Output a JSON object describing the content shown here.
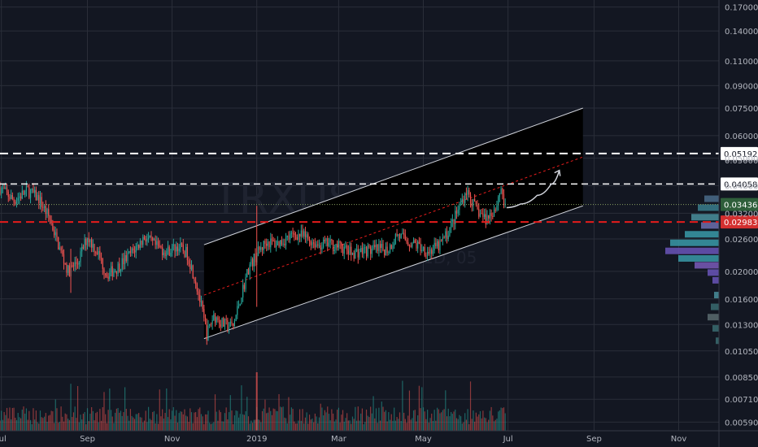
{
  "chart_data": {
    "type": "candlestick",
    "symbol_watermark": "TRXUSD",
    "interval_watermark": "1D, 05",
    "y_scale": "log",
    "ylim": [
      0.0055,
      0.18
    ],
    "x_range": [
      "2018-06-30",
      "2019-11-30"
    ],
    "grid": true,
    "y_ticks": [
      "0.17000",
      "0.14000",
      "0.11000",
      "0.09000",
      "0.07500",
      "0.06000",
      "0.05000",
      "0.04000",
      "0.03200",
      "0.02600",
      "0.02000",
      "0.01600",
      "0.01300",
      "0.01050",
      "0.00850",
      "0.00710",
      "0.00590"
    ],
    "x_ticks": [
      {
        "label": "Jul",
        "date": "2018-07-01"
      },
      {
        "label": "Sep",
        "date": "2018-09-01"
      },
      {
        "label": "Nov",
        "date": "2018-11-01"
      },
      {
        "label": "2019",
        "date": "2019-01-01"
      },
      {
        "label": "Mar",
        "date": "2019-03-01"
      },
      {
        "label": "May",
        "date": "2019-05-01"
      },
      {
        "label": "Jul",
        "date": "2019-07-01"
      },
      {
        "label": "Sep",
        "date": "2019-09-01"
      },
      {
        "label": "Nov",
        "date": "2019-11-01"
      }
    ],
    "price_path": [
      [
        "2018-06-30",
        0.0395
      ],
      [
        "2018-07-10",
        0.0355
      ],
      [
        "2018-07-20",
        0.0385
      ],
      [
        "2018-07-28",
        0.036
      ],
      [
        "2018-08-05",
        0.0305
      ],
      [
        "2018-08-12",
        0.024
      ],
      [
        "2018-08-18",
        0.02
      ],
      [
        "2018-08-25",
        0.0215
      ],
      [
        "2018-09-01",
        0.0265
      ],
      [
        "2018-09-08",
        0.0235
      ],
      [
        "2018-09-15",
        0.0195
      ],
      [
        "2018-09-22",
        0.0205
      ],
      [
        "2018-09-30",
        0.0225
      ],
      [
        "2018-10-07",
        0.0245
      ],
      [
        "2018-10-12",
        0.0265
      ],
      [
        "2018-10-20",
        0.0245
      ],
      [
        "2018-10-28",
        0.0235
      ],
      [
        "2018-11-05",
        0.0245
      ],
      [
        "2018-11-12",
        0.023
      ],
      [
        "2018-11-18",
        0.0185
      ],
      [
        "2018-11-22",
        0.015
      ],
      [
        "2018-11-26",
        0.012
      ],
      [
        "2018-12-01",
        0.014
      ],
      [
        "2018-12-08",
        0.013
      ],
      [
        "2018-12-15",
        0.0128
      ],
      [
        "2018-12-20",
        0.016
      ],
      [
        "2018-12-26",
        0.0205
      ],
      [
        "2019-01-01",
        0.023
      ],
      [
        "2019-01-08",
        0.0255
      ],
      [
        "2019-01-15",
        0.025
      ],
      [
        "2019-01-22",
        0.026
      ],
      [
        "2019-01-30",
        0.027
      ],
      [
        "2019-02-06",
        0.0262
      ],
      [
        "2019-02-14",
        0.0248
      ],
      [
        "2019-02-22",
        0.025
      ],
      [
        "2019-03-01",
        0.0245
      ],
      [
        "2019-03-10",
        0.0232
      ],
      [
        "2019-03-20",
        0.0237
      ],
      [
        "2019-03-30",
        0.0238
      ],
      [
        "2019-04-06",
        0.024
      ],
      [
        "2019-04-12",
        0.027
      ],
      [
        "2019-04-20",
        0.0255
      ],
      [
        "2019-04-28",
        0.0245
      ],
      [
        "2019-05-05",
        0.0235
      ],
      [
        "2019-05-12",
        0.0245
      ],
      [
        "2019-05-18",
        0.027
      ],
      [
        "2019-05-25",
        0.032
      ],
      [
        "2019-06-01",
        0.0385
      ],
      [
        "2019-06-08",
        0.033
      ],
      [
        "2019-06-15",
        0.0305
      ],
      [
        "2019-06-22",
        0.0335
      ],
      [
        "2019-06-26",
        0.0395
      ],
      [
        "2019-06-29",
        0.033
      ]
    ],
    "volume_profile": [
      {
        "price": 0.036,
        "width": 18,
        "color": "#4a6b8a"
      },
      {
        "price": 0.0335,
        "width": 26,
        "color": "#3a7d8c"
      },
      {
        "price": 0.031,
        "width": 34,
        "color": "#4a8f9c"
      },
      {
        "price": 0.029,
        "width": 22,
        "color": "#6c6fae"
      },
      {
        "price": 0.027,
        "width": 42,
        "color": "#3a9aa8"
      },
      {
        "price": 0.0252,
        "width": 60,
        "color": "#3a9aa8"
      },
      {
        "price": 0.0236,
        "width": 66,
        "color": "#6a55b8"
      },
      {
        "price": 0.0222,
        "width": 50,
        "color": "#3a9aa8"
      },
      {
        "price": 0.021,
        "width": 30,
        "color": "#7a5ab8"
      },
      {
        "price": 0.0198,
        "width": 14,
        "color": "#6a55b8"
      },
      {
        "price": 0.0186,
        "width": 8,
        "color": "#6a55b8"
      },
      {
        "price": 0.0165,
        "width": 6,
        "color": "#4a8f9c"
      },
      {
        "price": 0.015,
        "width": 10,
        "color": "#3a6b70"
      },
      {
        "price": 0.0138,
        "width": 14,
        "color": "#5a6b6e"
      },
      {
        "price": 0.0126,
        "width": 8,
        "color": "#3a6b70"
      },
      {
        "price": 0.0114,
        "width": 4,
        "color": "#3a6b70"
      }
    ],
    "colors": {
      "background": "#131722",
      "grid": "#2a2e39",
      "up": "#26a69a",
      "down": "#ef5350",
      "channel_fill": "#000000",
      "channel_line": "#d1d4dc",
      "white_dash": "#ffffff",
      "red_dash": "#e51c1c",
      "current_dotted": "#88a060",
      "label_dark": "#1e222d",
      "label_current": "#2e5e3a",
      "label_red": "#d32f2f"
    },
    "channel": {
      "start": {
        "date": "2018-11-24",
        "upper": 0.0248,
        "lower": 0.0116
      },
      "end": {
        "date": "2019-08-24",
        "upper": 0.075,
        "lower": 0.034
      },
      "midline_start": {
        "date": "2018-11-24",
        "price": 0.0165
      },
      "midline_end": {
        "date": "2019-08-24",
        "price": 0.0505
      }
    },
    "projection_arrow": [
      [
        "2019-06-30",
        0.0335
      ],
      [
        "2019-07-10",
        0.0345
      ],
      [
        "2019-07-22",
        0.037
      ],
      [
        "2019-08-01",
        0.0405
      ],
      [
        "2019-08-07",
        0.0453
      ]
    ],
    "horizontal_lines": [
      {
        "price": 0.05192,
        "style": "white-dash",
        "label": "0.05192",
        "ghost_label": "0.05000"
      },
      {
        "price": 0.04058,
        "style": "white-dash-thin",
        "label": "0.04058"
      },
      {
        "price": 0.03436,
        "style": "dotted",
        "label": "0.03436"
      },
      {
        "price": 0.02983,
        "style": "red-dash",
        "label": "0.02983"
      }
    ],
    "current_price": 0.03436
  }
}
